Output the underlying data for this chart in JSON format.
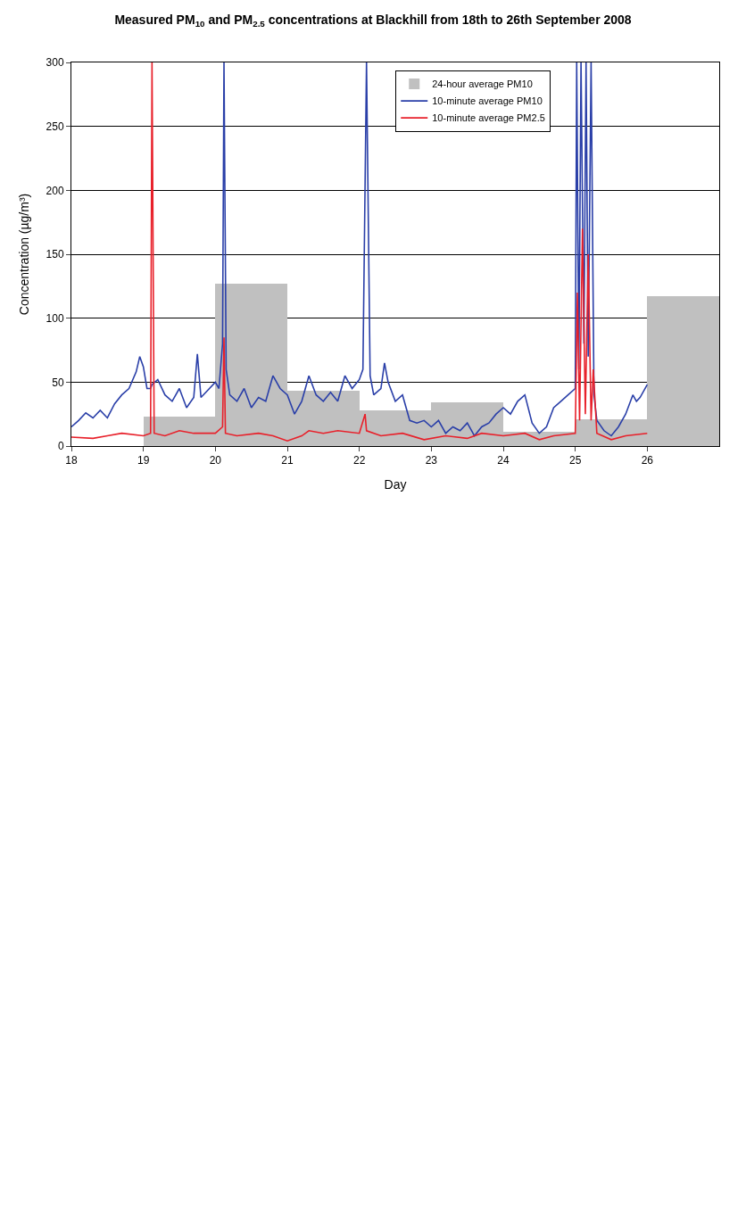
{
  "chart_data": {
    "type": "line",
    "title": "Measured PM$_{10}$ and PM$_{2.5}$ concentrations at Blackhill from 18th to 26th September 2008",
    "xlabel": "Day",
    "ylabel": "Concentration (µg/m³)",
    "xlim": [
      18,
      27
    ],
    "xticks": [
      18,
      19,
      20,
      21,
      22,
      23,
      24,
      25,
      26
    ],
    "ylim": [
      0,
      300
    ],
    "yticks": [
      0,
      50,
      100,
      150,
      200,
      250,
      300
    ],
    "grid": "y",
    "legend": "top right",
    "series": [
      {
        "name": "24-hour average PM10",
        "type": "bar",
        "color": "#c0c0c0",
        "x": [
          19.5,
          20.5,
          21.5,
          22.5,
          23.5,
          24.5,
          25.5,
          26.5
        ],
        "values": [
          23,
          127,
          43,
          28,
          34,
          11,
          21,
          117
        ]
      },
      {
        "name": "10-minute average PM10",
        "color": "#2a3fa8",
        "x": [
          18.0,
          18.1,
          18.2,
          18.3,
          18.4,
          18.5,
          18.6,
          18.7,
          18.8,
          18.9,
          18.95,
          19.0,
          19.05,
          19.1,
          19.12,
          19.2,
          19.3,
          19.4,
          19.5,
          19.6,
          19.7,
          19.75,
          19.8,
          19.9,
          20.0,
          20.05,
          20.1,
          20.12,
          20.15,
          20.2,
          20.3,
          20.4,
          20.5,
          20.6,
          20.7,
          20.8,
          20.9,
          21.0,
          21.1,
          21.2,
          21.3,
          21.4,
          21.5,
          21.6,
          21.7,
          21.8,
          21.9,
          22.0,
          22.05,
          22.1,
          22.15,
          22.2,
          22.3,
          22.35,
          22.4,
          22.5,
          22.6,
          22.7,
          22.8,
          22.9,
          23.0,
          23.1,
          23.2,
          23.3,
          23.4,
          23.5,
          23.6,
          23.7,
          23.8,
          23.9,
          24.0,
          24.1,
          24.2,
          24.3,
          24.4,
          24.5,
          24.6,
          24.7,
          24.8,
          24.9,
          25.0,
          25.02,
          25.05,
          25.08,
          25.12,
          25.15,
          25.18,
          25.22,
          25.26,
          25.3,
          25.4,
          25.5,
          25.6,
          25.7,
          25.8,
          25.85,
          25.9,
          26.0
        ],
        "values": [
          15,
          20,
          26,
          22,
          28,
          22,
          33,
          40,
          45,
          58,
          70,
          62,
          45,
          45,
          48,
          52,
          40,
          35,
          45,
          30,
          38,
          72,
          38,
          44,
          50,
          45,
          80,
          300,
          60,
          40,
          35,
          45,
          30,
          38,
          35,
          55,
          45,
          40,
          25,
          35,
          55,
          40,
          35,
          42,
          35,
          55,
          45,
          52,
          60,
          300,
          55,
          40,
          45,
          65,
          50,
          35,
          40,
          20,
          18,
          20,
          15,
          20,
          10,
          15,
          12,
          18,
          8,
          15,
          18,
          25,
          30,
          25,
          35,
          40,
          18,
          10,
          15,
          30,
          35,
          40,
          45,
          300,
          60,
          300,
          80,
          300,
          70,
          300,
          40,
          20,
          12,
          8,
          15,
          25,
          40,
          35,
          38,
          48
        ]
      },
      {
        "name": "10-minute average PM2.5",
        "color": "#e8202a",
        "x": [
          18.0,
          18.3,
          18.5,
          18.7,
          19.0,
          19.1,
          19.12,
          19.15,
          19.3,
          19.5,
          19.7,
          20.0,
          20.1,
          20.12,
          20.14,
          20.3,
          20.6,
          20.8,
          21.0,
          21.2,
          21.3,
          21.5,
          21.7,
          22.0,
          22.08,
          22.1,
          22.3,
          22.6,
          22.9,
          23.2,
          23.5,
          23.7,
          24.0,
          24.3,
          24.5,
          24.7,
          25.0,
          25.03,
          25.06,
          25.1,
          25.14,
          25.18,
          25.22,
          25.25,
          25.3,
          25.5,
          25.7,
          26.0
        ],
        "values": [
          7,
          6,
          8,
          10,
          8,
          10,
          300,
          10,
          8,
          12,
          10,
          10,
          15,
          85,
          10,
          8,
          10,
          8,
          4,
          8,
          12,
          10,
          12,
          10,
          25,
          12,
          8,
          10,
          5,
          8,
          6,
          10,
          8,
          10,
          5,
          8,
          10,
          120,
          20,
          170,
          25,
          150,
          20,
          60,
          10,
          5,
          8,
          10
        ]
      }
    ]
  }
}
